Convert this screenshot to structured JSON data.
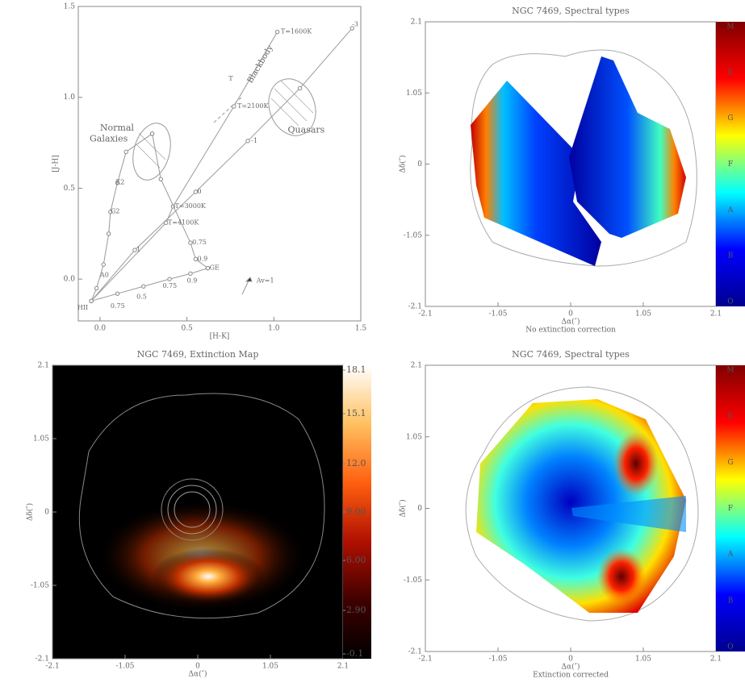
{
  "chart_data": [
    {
      "type": "line",
      "xlabel": "[H-K]",
      "ylabel": "[J-H]",
      "xlim": [
        -0.125,
        1.5
      ],
      "ylim": [
        -0.23,
        1.5
      ],
      "xticks": [
        {
          "value": 0,
          "label": "0.0"
        },
        0.5,
        {
          "value": 1,
          "label": "1.0"
        },
        1.5
      ],
      "yticks": [
        {
          "value": 0,
          "label": "0.0"
        },
        0.5,
        {
          "value": 1,
          "label": "1.0"
        },
        1.5
      ],
      "series": [
        {
          "name": "Blackbody",
          "color": "#999999",
          "x": [
            -0.05,
            0.38,
            0.42,
            0.77,
            1.02
          ],
          "y": [
            -0.12,
            0.31,
            0.4,
            0.95,
            1.36
          ]
        },
        {
          "color": "#999999",
          "x": [
            -0.05,
            0.2,
            0.55,
            0.85,
            1.15,
            1.45
          ],
          "y": [
            -0.12,
            0.16,
            0.48,
            0.76,
            1.05,
            1.38
          ]
        },
        {
          "color": "#999999",
          "x": [
            -0.05,
            -0.02,
            0.02,
            0.05,
            0.06,
            0.1,
            0.15,
            0.3
          ],
          "y": [
            -0.12,
            -0.05,
            0.08,
            0.25,
            0.37,
            0.53,
            0.7,
            0.8
          ]
        },
        {
          "color": "#999999",
          "x": [
            -0.05,
            0.1,
            0.25,
            0.4,
            0.52,
            0.62
          ],
          "y": [
            -0.12,
            -0.08,
            -0.04,
            0.0,
            0.03,
            0.06
          ]
        },
        {
          "color": "#999999",
          "x": [
            0.3,
            0.35,
            0.52,
            0.55,
            0.62
          ],
          "y": [
            0.8,
            0.55,
            0.2,
            0.11,
            0.06
          ]
        }
      ],
      "annotations": [
        {
          "text": "Normal",
          "x": 0.0,
          "y": 0.83
        },
        {
          "text": "Galaxies",
          "x": -0.06,
          "y": 0.77
        },
        {
          "text": "Quasars",
          "x": 1.08,
          "y": 0.82
        },
        {
          "text": "T=1600K",
          "x": 1.04,
          "y": 1.36
        },
        {
          "text": "T=2100K",
          "x": 0.79,
          "y": 0.95
        },
        {
          "text": "T=3000K",
          "x": 0.43,
          "y": 0.4
        },
        {
          "text": "T=4100K",
          "x": 0.39,
          "y": 0.31
        },
        {
          "text": "T",
          "x": 0.74,
          "y": 1.1
        },
        {
          "text": "-1",
          "x": 0.87,
          "y": 0.76
        },
        {
          "text": "0",
          "x": 0.56,
          "y": 0.48
        },
        {
          "text": "1",
          "x": 0.21,
          "y": 0.16
        },
        {
          "text": "-3",
          "x": 1.45,
          "y": 1.4
        },
        {
          "text": "0.75",
          "x": 0.53,
          "y": 0.2
        },
        {
          "text": "0.9",
          "x": 0.56,
          "y": 0.11
        },
        {
          "text": "GE",
          "x": 0.63,
          "y": 0.06
        },
        {
          "text": "0.9",
          "x": 0.5,
          "y": -0.01
        },
        {
          "text": "0.75",
          "x": 0.36,
          "y": -0.04
        },
        {
          "text": "0.5",
          "x": 0.21,
          "y": -0.1
        },
        {
          "text": "0.75",
          "x": 0.06,
          "y": -0.15
        },
        {
          "text": "HII",
          "x": -0.13,
          "y": -0.16
        },
        {
          "text": "A0",
          "x": 0.0,
          "y": 0.02
        },
        {
          "text": "G2",
          "x": 0.06,
          "y": 0.37
        },
        {
          "text": "K2",
          "x": 0.09,
          "y": 0.53
        },
        {
          "text": "Av=1",
          "x": 0.9,
          "y": -0.01
        }
      ]
    },
    {
      "type": "heatmap",
      "title": "NGC 7469, Spectral types",
      "xlabel": "Δα(″)",
      "ylabel": "Δδ(″)",
      "caption": "No extinction correction",
      "xlim": [
        -2.1,
        2.1
      ],
      "ylim": [
        -2.1,
        2.1
      ],
      "xticks": [
        -2.1,
        -1.05,
        0,
        1.05,
        2.1
      ],
      "yticks": [
        -2.1,
        -1.05,
        0,
        1.05,
        2.1
      ],
      "colorbar": {
        "labels": [
          "M",
          "K",
          "G",
          "F",
          "A",
          "B",
          "O"
        ],
        "colors": [
          "#800000",
          "#ff0000",
          "#ffff00",
          "#00ffff",
          "#0000ff",
          "#00008f"
        ]
      }
    },
    {
      "type": "heatmap",
      "title": "NGC 7469, Extinction Map",
      "xlabel": "Δα(″)",
      "ylabel": "Δδ(″)",
      "xlim": [
        -2.1,
        2.1
      ],
      "ylim": [
        -2.1,
        2.1
      ],
      "xticks": [
        -2.1,
        -1.05,
        0,
        1.05,
        2.1
      ],
      "yticks": [
        -2.1,
        -1.05,
        0,
        1.05,
        2.1
      ],
      "colorbar": {
        "clim": [
          -0.1,
          18.1
        ],
        "ticks": [
          -0.1,
          {
            "value": 2.9,
            "label": "2.90"
          },
          {
            "value": 6,
            "label": "6.00"
          },
          {
            "value": 9,
            "label": "9.00"
          },
          {
            "value": 12,
            "label": "12.0"
          },
          15.1,
          18.1
        ],
        "colors": [
          "#ffffff",
          "#ffc060",
          "#ff6010",
          "#b01000",
          "#400000",
          "#000000"
        ]
      }
    },
    {
      "type": "heatmap",
      "title": "NGC 7469, Spectral types",
      "xlabel": "Δα(″)",
      "ylabel": "Δδ(″)",
      "caption": "Extinction corrected",
      "xlim": [
        -2.1,
        2.1
      ],
      "ylim": [
        -2.1,
        2.1
      ],
      "xticks": [
        -2.1,
        -1.05,
        0,
        1.05,
        2.1
      ],
      "yticks": [
        -2.1,
        -1.05,
        0,
        1.05,
        2.1
      ],
      "colorbar": {
        "labels": [
          "M",
          "K",
          "G",
          "F",
          "A",
          "B",
          "O"
        ],
        "colors": [
          "#800000",
          "#ff0000",
          "#ffff00",
          "#00ffff",
          "#0000ff",
          "#00008f"
        ]
      }
    }
  ]
}
